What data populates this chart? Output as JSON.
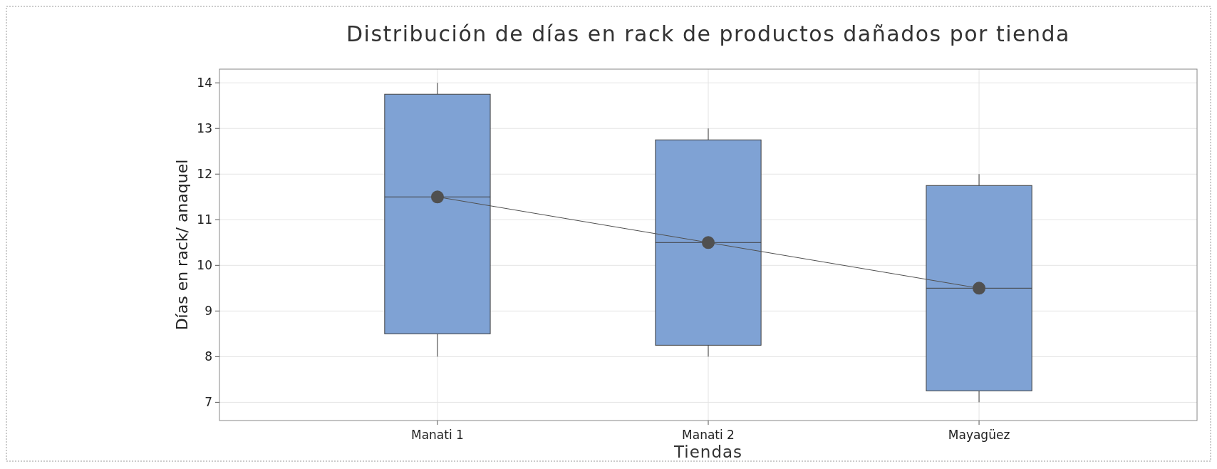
{
  "chart_data": {
    "type": "box",
    "title": "Distribución de días en rack de productos dañados por tienda",
    "xlabel": "Tiendas",
    "ylabel": "Días en rack/ anaquel",
    "categories": [
      "Manati 1",
      "Manati 2",
      "Mayagüez"
    ],
    "ylim": [
      6.6,
      14.3
    ],
    "yticks": [
      7,
      8,
      9,
      10,
      11,
      12,
      13,
      14
    ],
    "grid": true,
    "series": [
      {
        "color": "#7fa2d4",
        "boxes": [
          {
            "low": 8,
            "q1": 8.5,
            "median": 11.5,
            "q3": 13.75,
            "high": 14
          },
          {
            "low": 8,
            "q1": 8.25,
            "median": 10.5,
            "q3": 12.75,
            "high": 13
          },
          {
            "low": 7,
            "q1": 7.25,
            "median": 9.5,
            "q3": 11.75,
            "high": 12
          }
        ]
      },
      {
        "type": "line",
        "color": "#505050",
        "marker": "circle",
        "x": [
          "Manati 1",
          "Manati 2",
          "Mayagüez"
        ],
        "values": [
          11.5,
          10.5,
          9.5
        ]
      }
    ]
  }
}
